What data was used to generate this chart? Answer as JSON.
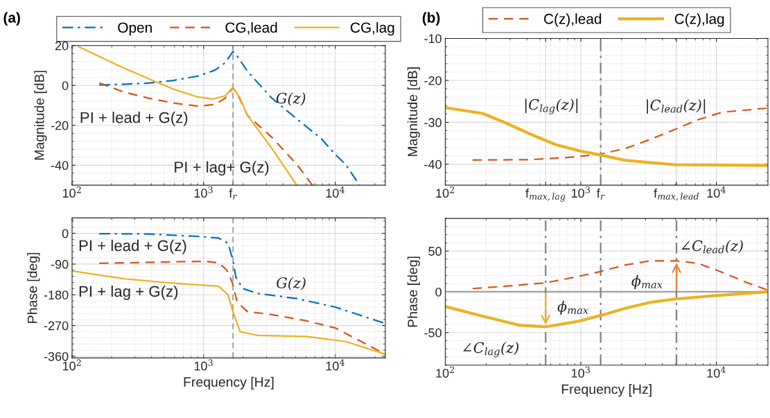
{
  "chart_data": [
    {
      "type": "line",
      "title": "(a)",
      "ylabel": "Magnitude [dB]",
      "log": "x",
      "grid": true,
      "legend": "top",
      "xlim": [
        100,
        24000
      ],
      "xticks": [
        {
          "value": 100,
          "label": "10$^{2}$"
        },
        {
          "value": 1000,
          "label": "10$^{3}$"
        },
        {
          "value": 1670,
          "label": "f$_{r}$"
        },
        {
          "value": 10000,
          "label": "10$^{4}$"
        }
      ],
      "ylim": [
        -50,
        20
      ],
      "yticks": [
        -40,
        -20,
        0,
        20
      ],
      "series": [
        {
          "name": "Open",
          "color": "#0072bd",
          "line_style": "dashdot",
          "x": [
            161,
            248,
            381,
            588,
            906,
            1222,
            1455,
            1670,
            1810,
            2150,
            3300,
            5100,
            7840,
            10000,
            12000,
            15300
          ],
          "values": [
            0.2,
            0.6,
            1.2,
            2.5,
            4.7,
            7.7,
            11.4,
            17,
            14.5,
            7.1,
            -6.4,
            -16.8,
            -26.7,
            -34.6,
            -39.6,
            -50
          ]
        },
        {
          "name": "CG,lead",
          "color": "#d95319",
          "line_style": "dashed",
          "x": [
            161,
            248,
            381,
            588,
            906,
            1222,
            1455,
            1670,
            1890,
            2150,
            3300,
            5100,
            6700
          ],
          "values": [
            1.2,
            -3.3,
            -6.4,
            -8.8,
            -10.4,
            -9.5,
            -6.4,
            -1.1,
            -7,
            -15,
            -26,
            -39.6,
            -50
          ]
        },
        {
          "name": "CG,lag",
          "color": "#edb120",
          "line_style": "solid",
          "x": [
            112,
            161,
            248,
            381,
            588,
            906,
            1180,
            1455,
            1670,
            1890,
            2150,
            3300,
            5100
          ],
          "values": [
            19.5,
            14.5,
            8.7,
            3.4,
            -1.8,
            -5.8,
            -6.8,
            -5.2,
            -0.9,
            -6.4,
            -15,
            -31.6,
            -50
          ]
        }
      ],
      "ref_lines": [
        {
          "axis": "x",
          "value": 1670,
          "color": "#808080",
          "line_style": "dashed"
        }
      ],
      "annotations": [
        "PI + lead + G(z)",
        "PI + lag+ G(z)",
        {
          "text": "G(z)",
          "x": 3530,
          "y": -7
        }
      ]
    },
    {
      "type": "line",
      "xlabel": "Frequency [Hz]",
      "ylabel": "Phase [deg]",
      "log": "x",
      "grid": true,
      "xlim": [
        100,
        24000
      ],
      "xticks": [
        {
          "value": 100,
          "label": "10$^{2}$"
        },
        {
          "value": 1000,
          "label": "10$^{3}$"
        },
        {
          "value": 10000,
          "label": "10$^{4}$"
        }
      ],
      "ylim": [
        -365,
        45
      ],
      "yticks": [
        -360,
        -270,
        -180,
        -90,
        0
      ],
      "series": [
        {
          "color": "#0072bd",
          "line_style": "dashdot",
          "x": [
            161,
            381,
            906,
            1300,
            1530,
            1670,
            1760,
            1990,
            2580,
            5100,
            10000,
            24000
          ],
          "values": [
            -1,
            -2,
            -9,
            -14,
            -29,
            -79,
            -130,
            -162,
            -176,
            -191,
            -216,
            -264
          ]
        },
        {
          "color": "#d95319",
          "line_style": "dashed",
          "x": [
            161,
            381,
            1000,
            1300,
            1500,
            1650,
            1800,
            2150,
            3300,
            6000,
            10000,
            24000
          ],
          "values": [
            -88,
            -85,
            -82,
            -86,
            -108,
            -144,
            -202,
            -229,
            -238,
            -256,
            -277,
            -354
          ]
        },
        {
          "color": "#edb120",
          "line_style": "solid",
          "x": [
            100,
            248,
            588,
            1300,
            1530,
            1670,
            1890,
            2580,
            6000,
            12000,
            24000
          ],
          "values": [
            -110,
            -133,
            -146,
            -155,
            -180,
            -230,
            -288,
            -299,
            -302,
            -317,
            -354
          ]
        }
      ],
      "ref_lines": [
        {
          "axis": "x",
          "value": 1670,
          "color": "#808080",
          "line_style": "dashed"
        }
      ],
      "annotations": [
        "PI + lead + G(z)",
        "PI + lag + G(z)",
        "G(z)"
      ]
    },
    {
      "type": "line",
      "title": "(b)",
      "ylabel": "Magnitude [dB]",
      "log": "x",
      "grid": true,
      "legend": "top",
      "xlim": [
        100,
        24000
      ],
      "xticks": [
        {
          "value": 100,
          "label": "10$^{2}$"
        },
        {
          "value": 550,
          "label": "f$_{max,lag}$"
        },
        {
          "value": 1000,
          "label": "10$^{3}$"
        },
        {
          "value": 1400,
          "label": "f$_{r}$"
        },
        {
          "value": 5080,
          "label": "f$_{max,lead}$"
        },
        {
          "value": 10000,
          "label": "10$^{4}$"
        }
      ],
      "ylim": [
        -45,
        -10
      ],
      "yticks": [
        -40,
        -30,
        -20,
        -10
      ],
      "series": [
        {
          "name": "C(z),lead",
          "color": "#d95319",
          "line_style": "dashed",
          "x": [
            159,
            430,
            800,
            1400,
            2150,
            3240,
            4870,
            7300,
            11000,
            24000
          ],
          "values": [
            -39,
            -38.9,
            -38.4,
            -37.6,
            -36.2,
            -34.1,
            -31.8,
            -29.4,
            -27.6,
            -26.6
          ]
        },
        {
          "name": "C(z),lag",
          "color": "#edb120",
          "line_style": "solid",
          "x": [
            100,
            190,
            286,
            430,
            650,
            970,
            1400,
            2150,
            4870,
            24000
          ],
          "values": [
            -26.5,
            -27.9,
            -30.3,
            -32.9,
            -35.3,
            -36.8,
            -37.8,
            -39.1,
            -40.1,
            -40.3
          ]
        }
      ],
      "ref_lines": [
        {
          "axis": "x",
          "value": 1400,
          "color": "#808080",
          "line_style": "dashdot"
        }
      ],
      "annotations": [
        "|C$_{lag}$(z)|",
        "|C$_{lead}$(z)|"
      ]
    },
    {
      "type": "line",
      "xlabel": "Frequency [Hz]",
      "ylabel": "Phase [deg]",
      "log": "x",
      "grid": true,
      "xlim": [
        100,
        24000
      ],
      "xticks": [
        {
          "value": 100,
          "label": "10$^{2}$"
        },
        {
          "value": 1000,
          "label": "10$^{3}$"
        },
        {
          "value": 10000,
          "label": "10$^{4}$"
        }
      ],
      "ylim": [
        -90,
        90
      ],
      "yticks": [
        -50,
        0,
        50
      ],
      "series": [
        {
          "color": "#d95319",
          "line_style": "dashed",
          "x": [
            159,
            286,
            550,
            970,
            1400,
            2150,
            3240,
            5080,
            7300,
            11000,
            16400,
            24000
          ],
          "values": [
            4,
            7,
            11,
            19,
            25,
            33,
            38,
            38,
            35,
            24,
            12,
            2
          ]
        },
        {
          "color": "#edb120",
          "line_style": "solid",
          "x": [
            100,
            190,
            354,
            550,
            970,
            1470,
            2150,
            3240,
            4870,
            9200,
            24000
          ],
          "values": [
            -18,
            -30,
            -41,
            -43,
            -36,
            -28,
            -20,
            -13,
            -9,
            -5,
            0
          ]
        }
      ],
      "ref_lines": [
        {
          "axis": "y",
          "value": 0,
          "color": "#a0a0a0",
          "line_style": "solid"
        },
        {
          "axis": "x",
          "value": 550,
          "color": "#808080",
          "line_style": "dashdot"
        },
        {
          "axis": "x",
          "value": 1400,
          "color": "#808080",
          "line_style": "dashdot"
        },
        {
          "axis": "x",
          "value": 5080,
          "color": "#808080",
          "line_style": "dashdot"
        }
      ],
      "annotations": [
        {
          "text": "∠C$_{lead}$(z)",
          "x": 5350,
          "y": 55
        },
        {
          "text": "ϕ$_{max}$",
          "x": 5080,
          "y": 38
        },
        {
          "text": "ϕ$_{max}$",
          "x": 550,
          "y": -43
        },
        "∠C$_{lag}$(z)"
      ]
    }
  ]
}
